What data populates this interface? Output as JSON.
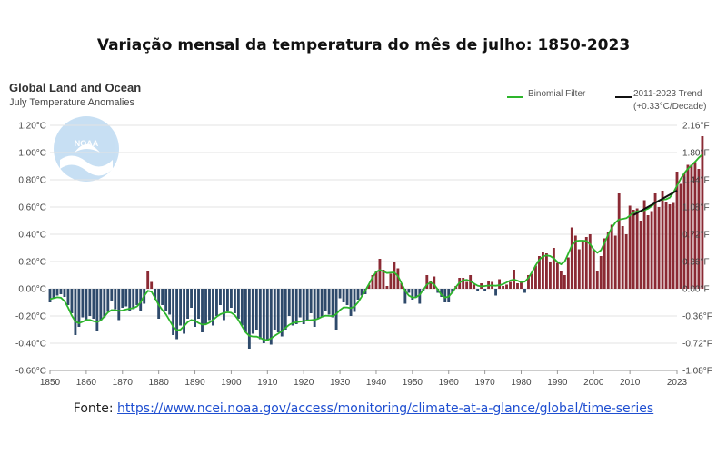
{
  "page": {
    "title": "Variação mensal da temperatura do mês de julho: 1850-2023",
    "source_prefix": "Fonte: ",
    "source_link": "https://www.ncei.noaa.gov/access/monitoring/climate-at-a-glance/global/time-series"
  },
  "logo_text": "NOAA",
  "chart_data": {
    "type": "bar",
    "title": "Global Land and Ocean",
    "subtitle": "July Temperature Anomalies",
    "xlabel": "",
    "ylabel": "",
    "x_range": [
      1850,
      2023
    ],
    "ylim": [
      -0.6,
      1.2
    ],
    "y_left_ticks": [
      "1.20°C",
      "1.00°C",
      "0.80°C",
      "0.60°C",
      "0.40°C",
      "0.20°C",
      "0.00°C",
      "-0.20°C",
      "-0.40°C",
      "-0.60°C"
    ],
    "y_right_ticks": [
      "2.16°F",
      "1.80°F",
      "1.44°F",
      "1.08°F",
      "0.72°F",
      "0.36°F",
      "0.00°F",
      "-0.36°F",
      "-0.72°F",
      "-1.08°F"
    ],
    "x_ticks": [
      "1850",
      "1860",
      "1870",
      "1880",
      "1890",
      "1900",
      "1910",
      "1920",
      "1930",
      "1940",
      "1950",
      "1960",
      "1970",
      "1980",
      "1990",
      "2000",
      "2010",
      "2023"
    ],
    "legend": {
      "binomial": "Binomial Filter",
      "trend": "2011-2023 Trend (+0.33°C/Decade)"
    },
    "colors": {
      "positive": "#8b2a34",
      "negative": "#2e4a6b",
      "filter": "#2db52b",
      "trend": "#111111"
    },
    "start_year": 1850,
    "values": [
      -0.1,
      -0.07,
      -0.05,
      -0.04,
      -0.06,
      -0.12,
      -0.18,
      -0.34,
      -0.28,
      -0.21,
      -0.23,
      -0.2,
      -0.22,
      -0.31,
      -0.24,
      -0.21,
      -0.17,
      -0.09,
      -0.15,
      -0.23,
      -0.14,
      -0.13,
      -0.16,
      -0.15,
      -0.12,
      -0.16,
      -0.11,
      0.13,
      0.05,
      -0.08,
      -0.22,
      -0.12,
      -0.16,
      -0.19,
      -0.34,
      -0.37,
      -0.27,
      -0.33,
      -0.22,
      -0.14,
      -0.28,
      -0.22,
      -0.32,
      -0.26,
      -0.23,
      -0.27,
      -0.2,
      -0.12,
      -0.23,
      -0.16,
      -0.14,
      -0.18,
      -0.22,
      -0.27,
      -0.32,
      -0.44,
      -0.33,
      -0.3,
      -0.37,
      -0.4,
      -0.38,
      -0.41,
      -0.3,
      -0.32,
      -0.35,
      -0.3,
      -0.2,
      -0.27,
      -0.26,
      -0.21,
      -0.26,
      -0.24,
      -0.18,
      -0.28,
      -0.22,
      -0.21,
      -0.16,
      -0.19,
      -0.21,
      -0.3,
      -0.07,
      -0.1,
      -0.12,
      -0.2,
      -0.17,
      -0.08,
      -0.05,
      -0.04,
      0.03,
      0.1,
      0.13,
      0.22,
      0.14,
      0.02,
      0.11,
      0.2,
      0.15,
      0.04,
      -0.11,
      -0.03,
      -0.08,
      -0.06,
      -0.11,
      -0.02,
      0.1,
      0.06,
      0.09,
      -0.03,
      -0.06,
      -0.1,
      -0.1,
      -0.03,
      0.02,
      0.08,
      0.08,
      0.05,
      0.1,
      0.03,
      -0.02,
      0.04,
      -0.02,
      0.06,
      0.05,
      -0.05,
      0.07,
      0.02,
      0.03,
      0.05,
      0.14,
      0.04,
      0.05,
      -0.03,
      0.1,
      0.11,
      0.17,
      0.24,
      0.27,
      0.26,
      0.2,
      0.3,
      0.19,
      0.13,
      0.1,
      0.23,
      0.45,
      0.39,
      0.29,
      0.35,
      0.38,
      0.4,
      0.29,
      0.13,
      0.24,
      0.37,
      0.42,
      0.47,
      0.39,
      0.7,
      0.46,
      0.4,
      0.61,
      0.58,
      0.59,
      0.5,
      0.65,
      0.54,
      0.57,
      0.7,
      0.6,
      0.72,
      0.64,
      0.62,
      0.63,
      0.86,
      0.77,
      0.85,
      0.91,
      0.91,
      0.93,
      0.88,
      1.12
    ]
  }
}
